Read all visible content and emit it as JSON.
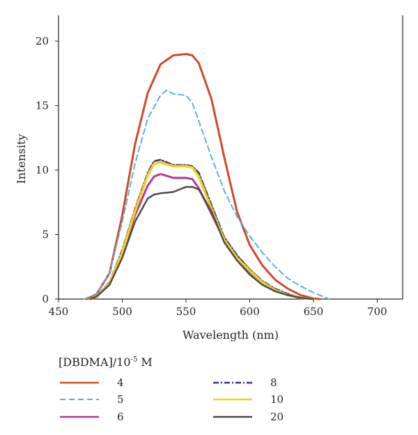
{
  "chart_data": {
    "type": "line",
    "title": "",
    "xlabel": "Wavelength (nm)",
    "ylabel": "Intensity",
    "xlim": [
      450,
      720
    ],
    "ylim": [
      0,
      22
    ],
    "xticks": [
      450,
      500,
      550,
      600,
      650,
      700
    ],
    "yticks": [
      0,
      5,
      10,
      15,
      20
    ],
    "grid": false,
    "legend": {
      "title_main": "[DBDMA]/10",
      "title_exp": "-5",
      "title_unit": " M",
      "placement": "bottom"
    },
    "series": [
      {
        "name": "4",
        "color": "#d0482c",
        "dash": "solid",
        "width": 3,
        "x": [
          472,
          480,
          490,
          500,
          510,
          520,
          530,
          540,
          550,
          555,
          560,
          570,
          580,
          590,
          600,
          610,
          620,
          630,
          640,
          650,
          655
        ],
        "y": [
          0,
          0.4,
          2.0,
          6.5,
          12.0,
          16.0,
          18.2,
          18.9,
          19.0,
          18.9,
          18.3,
          15.5,
          11.0,
          6.8,
          4.2,
          2.6,
          1.5,
          0.8,
          0.3,
          0.05,
          0
        ]
      },
      {
        "name": "5",
        "color": "#5ab0dd",
        "dash": "dashed",
        "width": 2,
        "x": [
          470,
          480,
          490,
          500,
          510,
          520,
          530,
          535,
          540,
          550,
          555,
          560,
          570,
          580,
          590,
          600,
          610,
          620,
          630,
          640,
          650,
          660,
          662
        ],
        "y": [
          0,
          0.4,
          2.0,
          6.0,
          10.5,
          14.0,
          15.8,
          16.2,
          15.9,
          15.8,
          15.2,
          13.8,
          11.0,
          8.4,
          6.4,
          4.9,
          3.6,
          2.5,
          1.6,
          1.0,
          0.5,
          0.1,
          0
        ]
      },
      {
        "name": "6",
        "color": "#b8398f",
        "dash": "solid",
        "width": 3,
        "x": [
          475,
          480,
          490,
          500,
          510,
          520,
          525,
          530,
          540,
          550,
          555,
          560,
          570,
          580,
          590,
          600,
          610,
          620,
          630,
          640,
          650
        ],
        "y": [
          0,
          0.2,
          1.2,
          3.5,
          6.5,
          8.8,
          9.5,
          9.7,
          9.4,
          9.4,
          9.3,
          8.6,
          6.6,
          4.6,
          3.2,
          2.1,
          1.3,
          0.7,
          0.3,
          0.1,
          0
        ]
      },
      {
        "name": "8",
        "color": "#3a2d8c",
        "dash": "dashdot",
        "width": 2.5,
        "x": [
          475,
          480,
          490,
          500,
          510,
          520,
          525,
          530,
          540,
          550,
          555,
          560,
          570,
          580,
          590,
          600,
          610,
          620,
          630,
          640,
          650
        ],
        "y": [
          0,
          0.2,
          1.3,
          3.8,
          7.0,
          9.8,
          10.7,
          10.8,
          10.4,
          10.4,
          10.3,
          9.8,
          7.3,
          4.8,
          3.4,
          2.3,
          1.4,
          0.8,
          0.4,
          0.1,
          0
        ]
      },
      {
        "name": "10",
        "color": "#f4d21a",
        "dash": "solid",
        "width": 3.5,
        "x": [
          475,
          480,
          490,
          500,
          510,
          520,
          525,
          530,
          540,
          550,
          555,
          560,
          570,
          580,
          590,
          600,
          610,
          620,
          630,
          640,
          650
        ],
        "y": [
          0,
          0.2,
          1.2,
          3.6,
          6.8,
          9.6,
          10.5,
          10.6,
          10.3,
          10.3,
          10.2,
          9.5,
          7.0,
          4.6,
          3.2,
          2.2,
          1.3,
          0.7,
          0.3,
          0.1,
          0
        ]
      },
      {
        "name": "20",
        "color": "#4a4a4a",
        "dash": "solid",
        "width": 2.5,
        "x": [
          475,
          480,
          490,
          500,
          510,
          520,
          525,
          530,
          540,
          550,
          555,
          560,
          570,
          580,
          590,
          600,
          610,
          620,
          630,
          640,
          650
        ],
        "y": [
          0,
          0.2,
          1.1,
          3.2,
          6.0,
          7.8,
          8.1,
          8.2,
          8.3,
          8.7,
          8.7,
          8.5,
          6.8,
          4.4,
          3.0,
          1.9,
          1.1,
          0.6,
          0.3,
          0.1,
          0
        ]
      }
    ]
  }
}
